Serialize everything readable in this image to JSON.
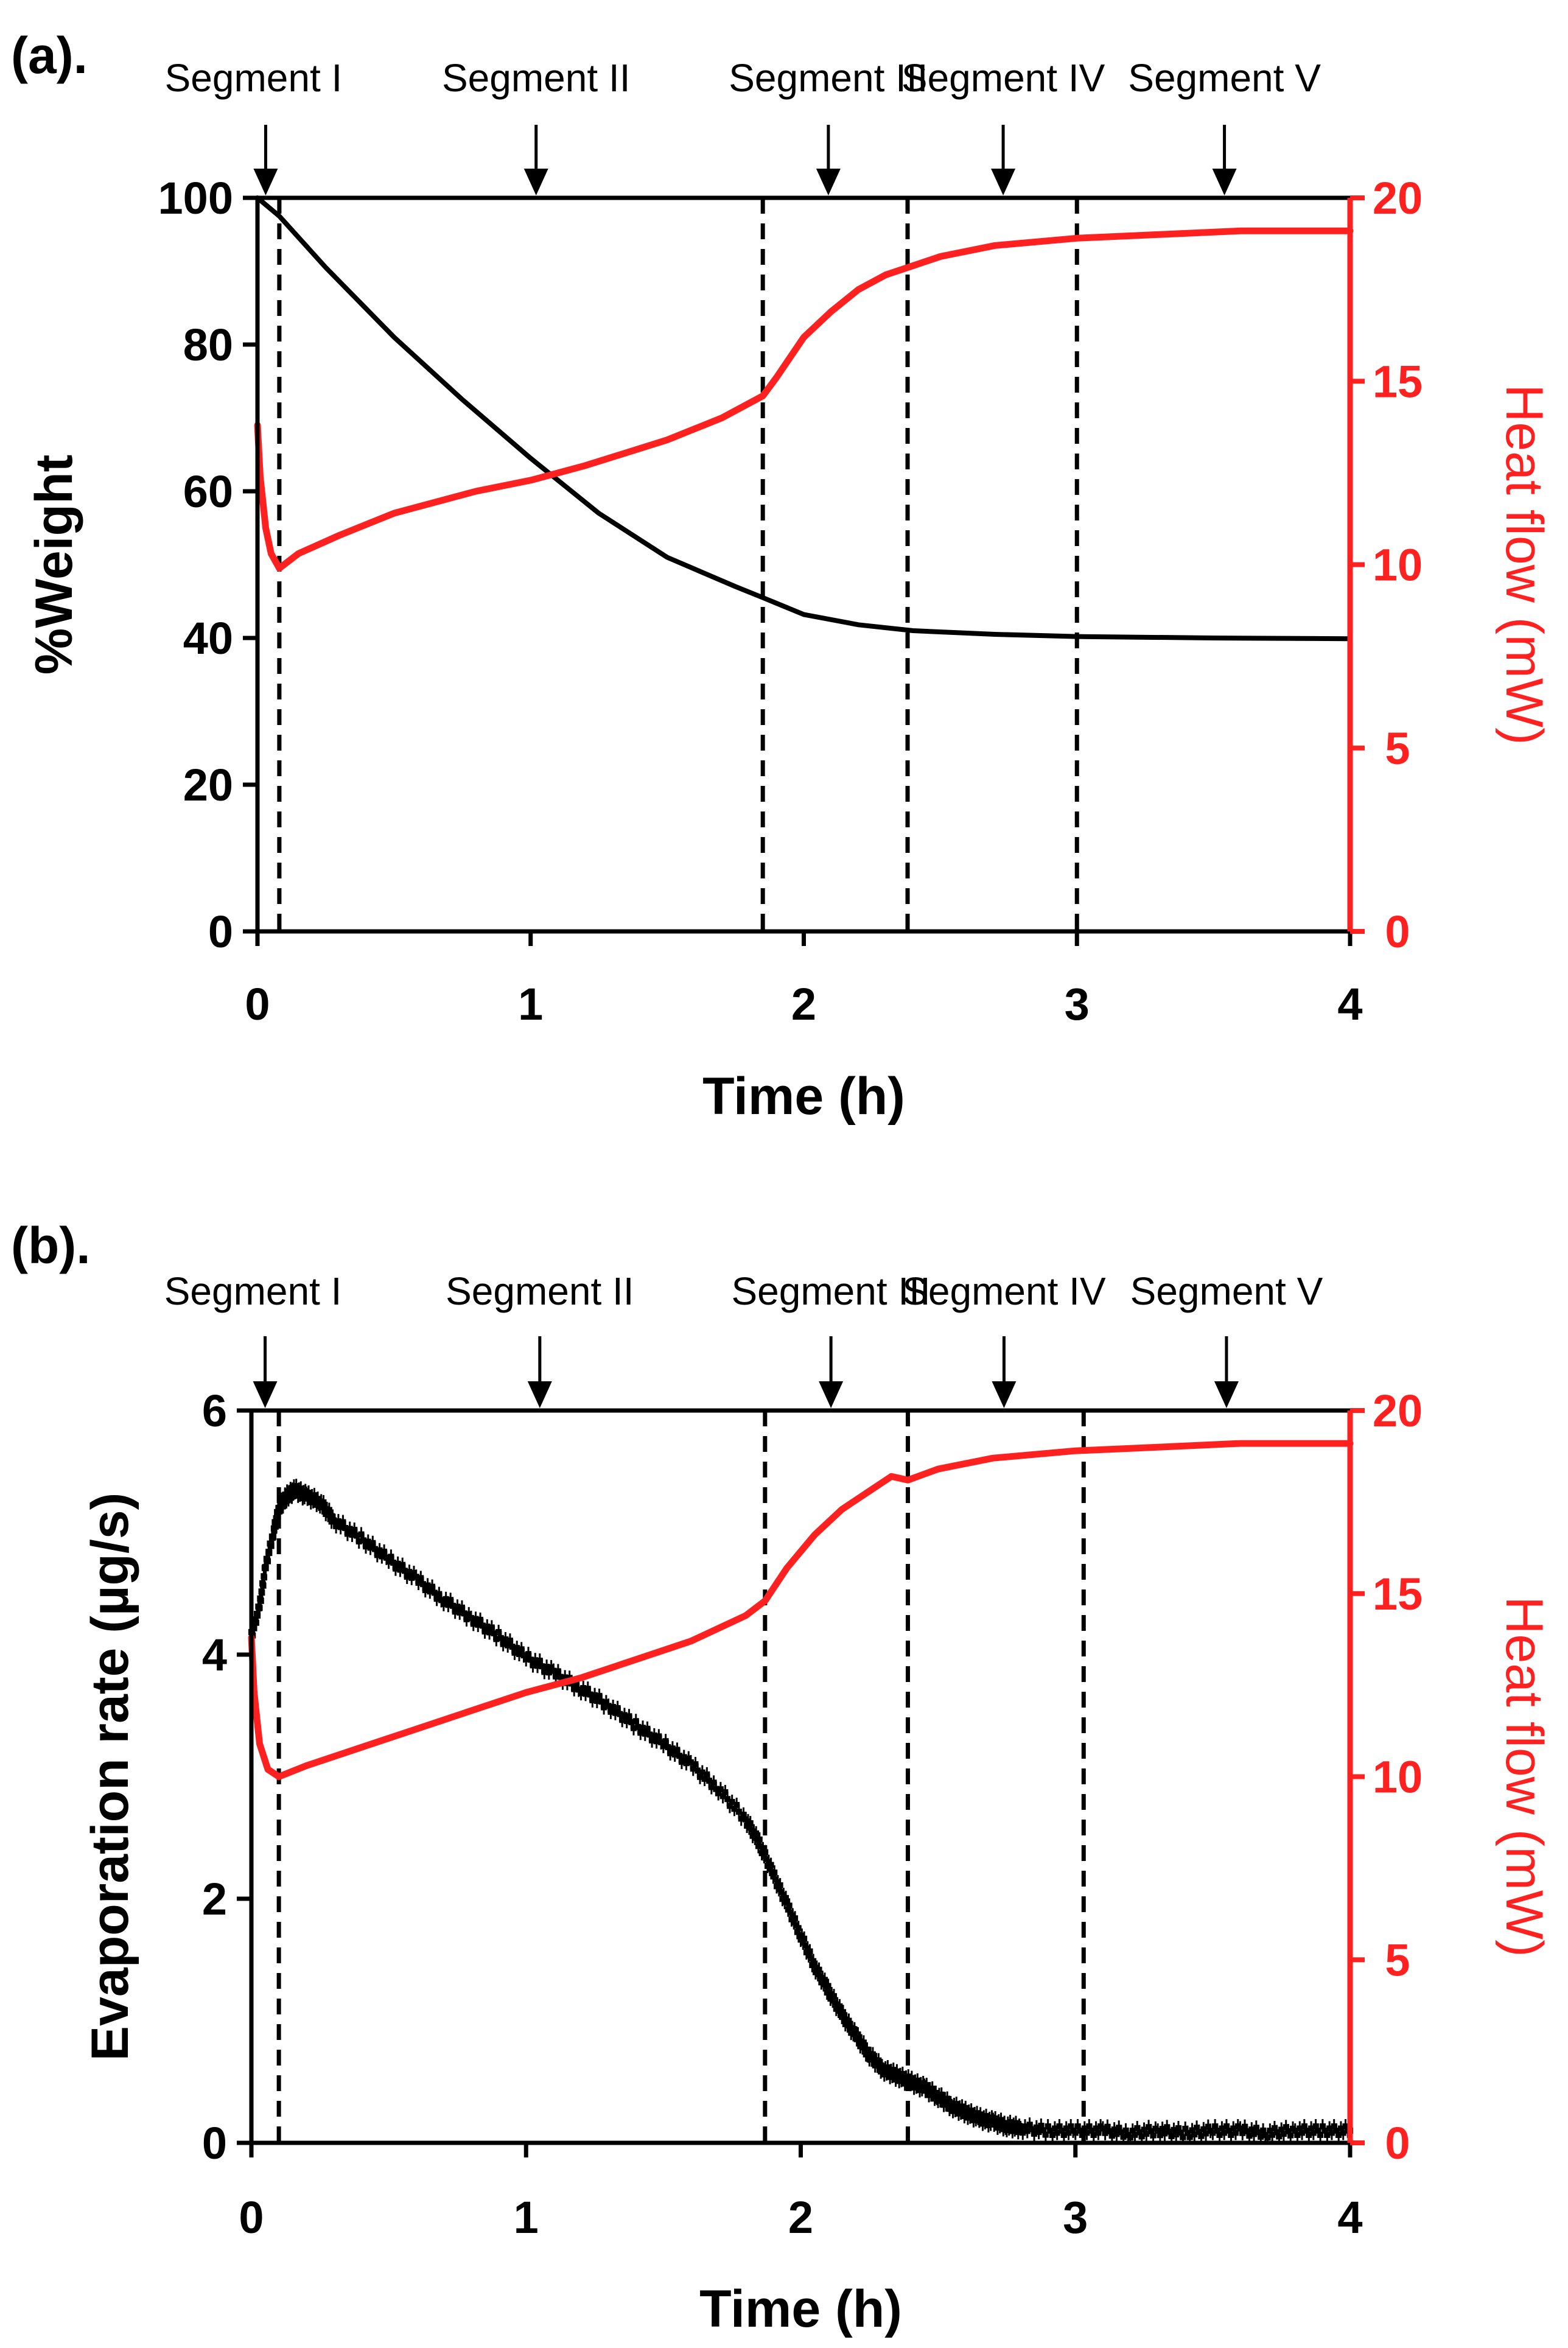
{
  "chart_data": [
    {
      "panel_label": "(a).",
      "type": "line",
      "xlabel": "Time (h)",
      "ylabel": "%Weight",
      "y2label": "Heat flow (mW)",
      "xlim": [
        0,
        4
      ],
      "ylim": [
        0,
        100
      ],
      "y2lim": [
        0,
        20
      ],
      "xticks": [
        "0",
        "1",
        "2",
        "3",
        "4"
      ],
      "yticks": [
        "0",
        "20",
        "40",
        "60",
        "80",
        "100"
      ],
      "y2ticks": [
        "0",
        "5",
        "10",
        "15",
        "20"
      ],
      "segments": [
        {
          "label": "Segment I",
          "x": 0.03
        },
        {
          "label": "Segment II",
          "x": 1.02
        },
        {
          "label": "Segment III",
          "x": 2.09
        },
        {
          "label": "Segment IV",
          "x": 2.73
        },
        {
          "label": "Segment V",
          "x": 3.54
        }
      ],
      "boundaries": [
        0.08,
        1.85,
        2.38,
        3.0
      ],
      "series": [
        {
          "name": "%Weight",
          "axis": "left",
          "color": "#000000",
          "x": [
            0,
            0.08,
            0.25,
            0.5,
            0.75,
            1.0,
            1.25,
            1.5,
            1.75,
            1.85,
            2.0,
            2.2,
            2.4,
            2.7,
            3.0,
            3.5,
            4.0
          ],
          "y": [
            100,
            97.5,
            90.5,
            81,
            72.5,
            64.5,
            57,
            51,
            47,
            45.5,
            43.2,
            41.8,
            41,
            40.5,
            40.2,
            40,
            39.9
          ]
        },
        {
          "name": "Heat flow",
          "axis": "right",
          "color": "#ff2020",
          "x": [
            0,
            0.01,
            0.03,
            0.05,
            0.08,
            0.15,
            0.3,
            0.5,
            0.8,
            1.0,
            1.2,
            1.5,
            1.7,
            1.85,
            1.9,
            2.0,
            2.1,
            2.2,
            2.3,
            2.38,
            2.5,
            2.7,
            3.0,
            3.3,
            3.6,
            4.0
          ],
          "y": [
            13.8,
            12.4,
            11.0,
            10.3,
            9.9,
            10.3,
            10.8,
            11.4,
            12.0,
            12.3,
            12.7,
            13.4,
            14.0,
            14.6,
            15.1,
            16.2,
            16.9,
            17.5,
            17.9,
            18.1,
            18.4,
            18.7,
            18.9,
            19.0,
            19.1,
            19.1
          ]
        }
      ]
    },
    {
      "panel_label": "(b).",
      "type": "scatter",
      "xlabel": "Time (h)",
      "ylabel": "Evaporation rate (µg/s)",
      "y2label": "Heat flow (mW)",
      "xlim": [
        0,
        4
      ],
      "ylim": [
        0,
        6
      ],
      "y2lim": [
        0,
        20
      ],
      "xticks": [
        "0",
        "1",
        "2",
        "3",
        "4"
      ],
      "yticks": [
        "0",
        "2",
        "4",
        "6"
      ],
      "y2ticks": [
        "0",
        "5",
        "10",
        "15",
        "20"
      ],
      "segments": [
        {
          "label": "Segment I",
          "x": 0.05
        },
        {
          "label": "Segment II",
          "x": 1.05
        },
        {
          "label": "Segment III",
          "x": 2.11
        },
        {
          "label": "Segment IV",
          "x": 2.74
        },
        {
          "label": "Segment V",
          "x": 3.55
        }
      ],
      "boundaries": [
        0.1,
        1.87,
        2.39,
        3.03
      ],
      "series": [
        {
          "name": "Evaporation rate",
          "axis": "left",
          "color": "#000000",
          "x": [
            0,
            0.03,
            0.05,
            0.08,
            0.1,
            0.13,
            0.16,
            0.2,
            0.25,
            0.3,
            0.4,
            0.5,
            0.6,
            0.7,
            0.8,
            0.9,
            1.0,
            1.1,
            1.2,
            1.3,
            1.4,
            1.5,
            1.6,
            1.7,
            1.8,
            1.85,
            1.9,
            1.95,
            2.0,
            2.05,
            2.1,
            2.15,
            2.2,
            2.25,
            2.3,
            2.35,
            2.4,
            2.45,
            2.5,
            2.55,
            2.6,
            2.65,
            2.7,
            2.75,
            2.8,
            2.9,
            3.0,
            3.1,
            3.2,
            3.3,
            3.4,
            3.5,
            3.6,
            3.7,
            3.8,
            3.9,
            4.0
          ],
          "y": [
            4.15,
            4.4,
            4.7,
            5.0,
            5.2,
            5.3,
            5.35,
            5.3,
            5.25,
            5.1,
            4.95,
            4.78,
            4.62,
            4.45,
            4.3,
            4.15,
            3.98,
            3.85,
            3.72,
            3.58,
            3.42,
            3.27,
            3.1,
            2.9,
            2.65,
            2.45,
            2.2,
            1.95,
            1.7,
            1.45,
            1.25,
            1.05,
            0.88,
            0.72,
            0.6,
            0.55,
            0.5,
            0.45,
            0.38,
            0.3,
            0.25,
            0.2,
            0.17,
            0.14,
            0.12,
            0.1,
            0.1,
            0.1,
            0.08,
            0.1,
            0.08,
            0.1,
            0.1,
            0.08,
            0.1,
            0.1,
            0.1
          ]
        },
        {
          "name": "Heat flow",
          "axis": "right",
          "color": "#ff2020",
          "x": [
            0,
            0.01,
            0.03,
            0.06,
            0.1,
            0.2,
            0.4,
            0.6,
            0.8,
            1.0,
            1.2,
            1.4,
            1.6,
            1.8,
            1.87,
            1.95,
            2.05,
            2.15,
            2.25,
            2.33,
            2.39,
            2.5,
            2.7,
            3.0,
            3.3,
            3.6,
            4.0
          ],
          "y": [
            13.8,
            12.3,
            10.9,
            10.2,
            10.0,
            10.3,
            10.8,
            11.3,
            11.8,
            12.3,
            12.7,
            13.2,
            13.7,
            14.4,
            14.8,
            15.7,
            16.6,
            17.3,
            17.8,
            18.2,
            18.1,
            18.4,
            18.7,
            18.9,
            19.0,
            19.1,
            19.1
          ]
        }
      ]
    }
  ]
}
